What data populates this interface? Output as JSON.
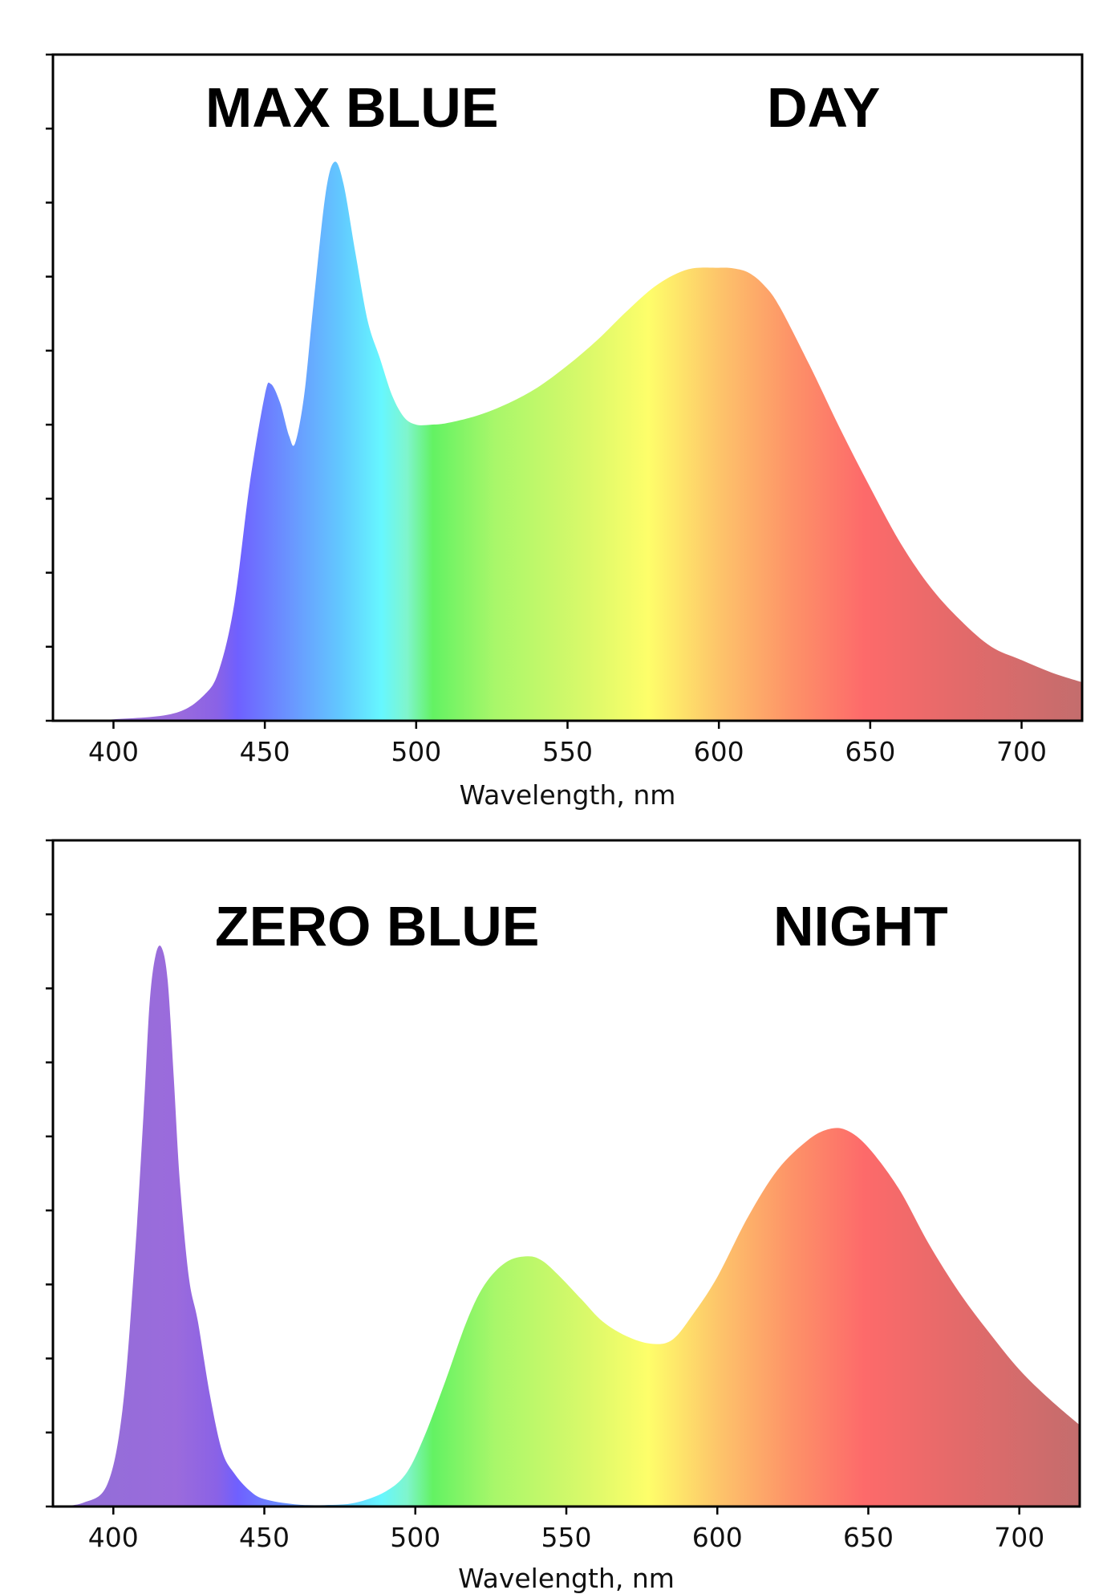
{
  "chart_data": [
    {
      "type": "area",
      "labels": [
        "MAX BLUE",
        "DAY"
      ],
      "xlabel": "Wavelength, nm",
      "ylabel": "",
      "xlim": [
        380,
        720
      ],
      "ylim": [
        0,
        9
      ],
      "xticks": [
        400,
        450,
        500,
        550,
        600,
        650,
        700
      ],
      "yticks": 9,
      "y_tick_labels_shown": false,
      "fill": "visible-spectrum color gradient",
      "x": [
        380,
        400,
        420,
        430,
        435,
        440,
        445,
        450,
        452,
        455,
        458,
        460,
        463,
        466,
        470,
        473,
        476,
        480,
        484,
        488,
        492,
        496,
        500,
        505,
        510,
        520,
        530,
        540,
        550,
        560,
        570,
        580,
        590,
        600,
        605,
        610,
        615,
        620,
        630,
        640,
        650,
        660,
        670,
        680,
        690,
        700,
        710,
        720
      ],
      "y": [
        0.0,
        0.02,
        0.1,
        0.35,
        0.7,
        1.6,
        3.2,
        4.4,
        4.55,
        4.3,
        3.85,
        3.75,
        4.4,
        5.6,
        7.1,
        7.55,
        7.25,
        6.3,
        5.4,
        4.9,
        4.4,
        4.1,
        4.0,
        4.0,
        4.02,
        4.12,
        4.28,
        4.5,
        4.8,
        5.15,
        5.55,
        5.9,
        6.1,
        6.12,
        6.11,
        6.05,
        5.88,
        5.6,
        4.8,
        3.95,
        3.15,
        2.4,
        1.8,
        1.35,
        1.0,
        0.82,
        0.65,
        0.52
      ]
    },
    {
      "type": "area",
      "labels": [
        "ZERO BLUE",
        "NIGHT"
      ],
      "xlabel": "Wavelength, nm",
      "ylabel": "",
      "xlim": [
        380,
        720
      ],
      "ylim": [
        0,
        9
      ],
      "xticks": [
        400,
        450,
        500,
        550,
        600,
        650,
        700
      ],
      "yticks": 9,
      "y_tick_labels_shown": false,
      "fill": "visible-spectrum color gradient",
      "x": [
        380,
        390,
        398,
        403,
        407,
        410,
        412,
        414,
        416,
        418,
        420,
        422,
        425,
        428,
        432,
        436,
        440,
        445,
        450,
        460,
        470,
        480,
        490,
        497,
        503,
        510,
        517,
        523,
        530,
        537,
        542,
        548,
        555,
        562,
        570,
        578,
        585,
        592,
        600,
        610,
        620,
        630,
        637,
        643,
        650,
        660,
        670,
        680,
        690,
        700,
        710,
        720
      ],
      "y": [
        0.0,
        0.05,
        0.3,
        1.3,
        3.3,
        5.3,
        6.8,
        7.45,
        7.55,
        7.1,
        5.8,
        4.4,
        3.1,
        2.5,
        1.5,
        0.75,
        0.45,
        0.22,
        0.1,
        0.03,
        0.02,
        0.05,
        0.2,
        0.45,
        0.95,
        1.7,
        2.5,
        3.0,
        3.3,
        3.38,
        3.32,
        3.1,
        2.8,
        2.5,
        2.3,
        2.2,
        2.25,
        2.6,
        3.1,
        3.9,
        4.55,
        4.95,
        5.1,
        5.08,
        4.85,
        4.3,
        3.55,
        2.9,
        2.35,
        1.85,
        1.45,
        1.1
      ]
    }
  ]
}
